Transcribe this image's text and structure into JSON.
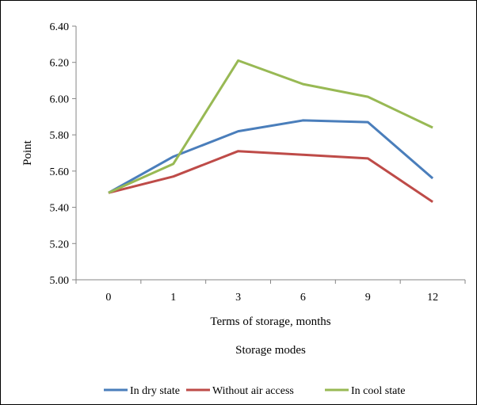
{
  "chart_data": {
    "type": "line",
    "categories": [
      "0",
      "1",
      "3",
      "6",
      "9",
      "12"
    ],
    "series": [
      {
        "name": "In dry state",
        "color": "#4a7ebb",
        "values": [
          5.48,
          5.68,
          5.82,
          5.88,
          5.87,
          5.56
        ]
      },
      {
        "name": "Without air access",
        "color": "#be4b48",
        "values": [
          5.48,
          5.57,
          5.71,
          5.69,
          5.67,
          5.43
        ]
      },
      {
        "name": "In cool state",
        "color": "#98b954",
        "values": [
          5.48,
          5.64,
          6.21,
          6.08,
          6.01,
          5.84
        ]
      }
    ],
    "xlabel": "Terms of storage, months",
    "ylabel": "Point",
    "legend_title": "Storage modes",
    "yticks": [
      "5.00",
      "5.20",
      "5.40",
      "5.60",
      "5.80",
      "6.00",
      "6.20",
      "6.40"
    ],
    "ylim": [
      5.0,
      6.4
    ],
    "grid": false,
    "legend_position": "bottom"
  }
}
